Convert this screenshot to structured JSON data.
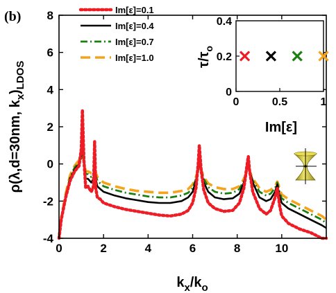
{
  "panel_label": "(b)",
  "chart_data": [
    {
      "type": "line",
      "xlabel": "kx/ko",
      "ylabel": "ρ(λ,d=30nm, kx)LDOS",
      "xlim": [
        0,
        12
      ],
      "ylim": [
        -4,
        8
      ],
      "x_ticks": [
        "0",
        "2",
        "4",
        "6",
        "8",
        "10"
      ],
      "y_ticks": [
        "-4",
        "-2",
        "0",
        "2",
        "4",
        "6",
        "8"
      ],
      "grid": false,
      "legend_position": "top-left",
      "series": [
        {
          "name": "Im[ε]=0.1",
          "color": "#ee1c25",
          "dash": "dotted",
          "x": [
            0,
            0.1,
            0.3,
            0.5,
            0.7,
            0.9,
            1.0,
            1.05,
            1.12,
            1.2,
            1.3,
            1.45,
            1.55,
            1.6,
            1.65,
            1.72,
            1.85,
            2.0,
            2.5,
            3.0,
            3.5,
            4.0,
            4.5,
            5.0,
            5.5,
            5.8,
            6.0,
            6.15,
            6.25,
            6.3,
            6.38,
            6.5,
            6.7,
            7.0,
            7.4,
            7.8,
            8.1,
            8.3,
            8.45,
            8.5,
            8.55,
            8.7,
            9.0,
            9.3,
            9.5,
            9.7,
            9.8,
            9.85,
            9.9,
            10.0,
            10.3,
            10.8,
            11.3,
            11.8,
            12.0
          ],
          "y": [
            -4,
            -3.0,
            -1.8,
            -0.9,
            -0.4,
            -0.1,
            0.8,
            2.9,
            0.2,
            -1.3,
            -1.2,
            -1.5,
            -1.2,
            1.2,
            -1.3,
            -1.8,
            -1.9,
            -2.1,
            -2.3,
            -2.45,
            -2.55,
            -2.65,
            -2.75,
            -2.8,
            -2.7,
            -2.5,
            -2.1,
            -1.3,
            0.0,
            1.0,
            -0.3,
            -1.4,
            -2.1,
            -2.4,
            -2.55,
            -2.5,
            -2.1,
            -1.3,
            0.0,
            0.4,
            -0.3,
            -1.5,
            -2.4,
            -2.7,
            -2.5,
            -1.8,
            -1.3,
            -1.7,
            -2.2,
            -2.8,
            -3.2,
            -3.5,
            -3.7,
            -4.0,
            -4.0
          ]
        },
        {
          "name": "Im[ε]=0.4",
          "color": "#000000",
          "dash": "solid",
          "x": [
            0,
            0.1,
            0.3,
            0.5,
            0.7,
            0.9,
            1.0,
            1.05,
            1.12,
            1.2,
            1.3,
            1.45,
            1.55,
            1.6,
            1.65,
            1.72,
            1.85,
            2.0,
            2.5,
            3.0,
            3.5,
            4.0,
            4.5,
            5.0,
            5.5,
            5.8,
            6.0,
            6.15,
            6.25,
            6.3,
            6.38,
            6.5,
            6.7,
            7.0,
            7.4,
            7.8,
            8.1,
            8.3,
            8.45,
            8.5,
            8.55,
            8.7,
            9.0,
            9.3,
            9.5,
            9.7,
            9.8,
            9.85,
            9.9,
            10.0,
            10.3,
            10.8,
            11.3,
            11.8,
            12.0
          ],
          "y": [
            -4,
            -3.0,
            -1.8,
            -0.8,
            -0.3,
            0.0,
            0.5,
            1.2,
            0.3,
            -0.8,
            -0.8,
            -1.0,
            -0.8,
            0.2,
            -0.8,
            -1.2,
            -1.35,
            -1.5,
            -1.7,
            -1.85,
            -1.95,
            -2.05,
            -2.1,
            -2.1,
            -2.0,
            -1.8,
            -1.5,
            -0.9,
            -0.2,
            0.3,
            -0.3,
            -1.0,
            -1.5,
            -1.8,
            -1.9,
            -1.85,
            -1.6,
            -1.0,
            -0.2,
            0.2,
            -0.3,
            -1.0,
            -1.8,
            -2.0,
            -1.9,
            -1.5,
            -1.1,
            -1.4,
            -1.7,
            -2.1,
            -2.4,
            -2.7,
            -3.0,
            -3.3,
            -3.45
          ]
        },
        {
          "name": "Im[ε]=0.7",
          "color": "#1b7f12",
          "dash": "dash-dot",
          "x": [
            0,
            0.1,
            0.3,
            0.5,
            0.7,
            0.9,
            1.0,
            1.05,
            1.12,
            1.2,
            1.3,
            1.45,
            1.55,
            1.6,
            1.65,
            1.72,
            1.85,
            2.0,
            2.5,
            3.0,
            3.5,
            4.0,
            4.5,
            5.0,
            5.5,
            5.8,
            6.0,
            6.15,
            6.25,
            6.3,
            6.38,
            6.5,
            6.7,
            7.0,
            7.4,
            7.8,
            8.1,
            8.3,
            8.45,
            8.5,
            8.55,
            8.7,
            9.0,
            9.3,
            9.5,
            9.7,
            9.8,
            9.85,
            9.9,
            10.0,
            10.3,
            10.8,
            11.3,
            11.8,
            12.0
          ],
          "y": [
            -4,
            -3.0,
            -1.7,
            -0.7,
            -0.2,
            0.1,
            0.3,
            0.7,
            0.2,
            -0.55,
            -0.55,
            -0.7,
            -0.6,
            -0.2,
            -0.6,
            -0.9,
            -1.05,
            -1.2,
            -1.4,
            -1.55,
            -1.65,
            -1.75,
            -1.8,
            -1.8,
            -1.7,
            -1.55,
            -1.3,
            -0.8,
            -0.3,
            0.1,
            -0.3,
            -0.8,
            -1.25,
            -1.5,
            -1.6,
            -1.55,
            -1.35,
            -0.9,
            -0.3,
            0.0,
            -0.3,
            -0.9,
            -1.5,
            -1.7,
            -1.6,
            -1.3,
            -1.0,
            -1.25,
            -1.5,
            -1.85,
            -2.1,
            -2.4,
            -2.7,
            -3.0,
            -3.2
          ]
        },
        {
          "name": "Im[ε]=1.0",
          "color": "#f7a21b",
          "dash": "dashed",
          "x": [
            0,
            0.1,
            0.3,
            0.5,
            0.7,
            0.9,
            1.0,
            1.05,
            1.12,
            1.2,
            1.3,
            1.45,
            1.55,
            1.6,
            1.65,
            1.72,
            1.85,
            2.0,
            2.5,
            3.0,
            3.5,
            4.0,
            4.5,
            5.0,
            5.5,
            5.8,
            6.0,
            6.15,
            6.25,
            6.3,
            6.38,
            6.5,
            6.7,
            7.0,
            7.4,
            7.8,
            8.1,
            8.3,
            8.45,
            8.5,
            8.55,
            8.7,
            9.0,
            9.3,
            9.5,
            9.7,
            9.8,
            9.85,
            9.9,
            10.0,
            10.3,
            10.8,
            11.3,
            11.8,
            12.0
          ],
          "y": [
            -4,
            -2.9,
            -1.6,
            -0.6,
            -0.1,
            0.2,
            0.3,
            0.5,
            0.1,
            -0.4,
            -0.4,
            -0.5,
            -0.45,
            -0.3,
            -0.45,
            -0.7,
            -0.85,
            -1.0,
            -1.2,
            -1.35,
            -1.45,
            -1.5,
            -1.55,
            -1.55,
            -1.45,
            -1.35,
            -1.1,
            -0.7,
            -0.3,
            -0.05,
            -0.3,
            -0.7,
            -1.05,
            -1.25,
            -1.35,
            -1.35,
            -1.2,
            -0.8,
            -0.4,
            -0.2,
            -0.35,
            -0.8,
            -1.3,
            -1.5,
            -1.4,
            -1.2,
            -0.95,
            -1.1,
            -1.35,
            -1.65,
            -1.9,
            -2.2,
            -2.5,
            -2.8,
            -3.0
          ]
        }
      ]
    },
    {
      "type": "scatter",
      "xlabel": "Im[ε]",
      "ylabel": "τ/τo",
      "xlim": [
        0,
        1
      ],
      "ylim": [
        0,
        0.4
      ],
      "x_ticks": [
        "0",
        "0.5",
        "1"
      ],
      "y_ticks": [
        "0",
        "0.2",
        "0.4"
      ],
      "marker": "x",
      "points": [
        {
          "x": 0.1,
          "y": 0.2,
          "color": "#ee1c25"
        },
        {
          "x": 0.4,
          "y": 0.2,
          "color": "#000000"
        },
        {
          "x": 0.7,
          "y": 0.2,
          "color": "#1b7f12"
        },
        {
          "x": 1.0,
          "y": 0.2,
          "color": "#f7a21b"
        }
      ]
    }
  ],
  "colors": {
    "inset_shape": "#d9cc3a",
    "inset_shape_dark": "#8a7f16"
  }
}
